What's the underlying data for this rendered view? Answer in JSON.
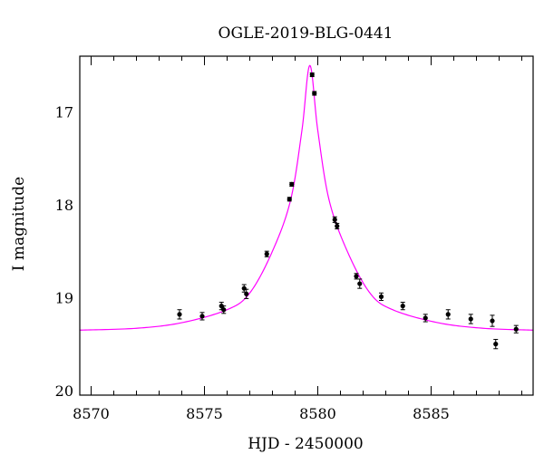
{
  "chart_data": {
    "type": "scatter",
    "title": "OGLE-2019-BLG-0441",
    "xlabel": "HJD - 2450000",
    "ylabel": "I magnitude",
    "xlim": [
      8569.5,
      8589.5
    ],
    "ylim": [
      20.05,
      16.4
    ],
    "y_inverted": true,
    "grid": false,
    "xticks": [
      8570,
      8575,
      8580,
      8585
    ],
    "xtick_labels": [
      "8570",
      "8575",
      "8580",
      "8585"
    ],
    "yticks": [
      17,
      18,
      19,
      20
    ],
    "ytick_labels": [
      "17",
      "18",
      "19",
      "20"
    ],
    "colors": {
      "model": "#ff00ff",
      "points": "#000000"
    },
    "model_curve": {
      "t0": 8579.65,
      "baseline_mag": 19.47,
      "points": [
        {
          "x": 8569.5,
          "y": 19.35
        },
        {
          "x": 8572.0,
          "y": 19.33
        },
        {
          "x": 8574.0,
          "y": 19.27
        },
        {
          "x": 8576.0,
          "y": 19.13
        },
        {
          "x": 8577.0,
          "y": 18.95
        },
        {
          "x": 8578.0,
          "y": 18.5
        },
        {
          "x": 8578.8,
          "y": 17.95
        },
        {
          "x": 8579.3,
          "y": 17.2
        },
        {
          "x": 8579.65,
          "y": 16.5
        },
        {
          "x": 8580.0,
          "y": 17.2
        },
        {
          "x": 8580.5,
          "y": 17.95
        },
        {
          "x": 8581.3,
          "y": 18.5
        },
        {
          "x": 8582.3,
          "y": 18.95
        },
        {
          "x": 8583.3,
          "y": 19.13
        },
        {
          "x": 8585.3,
          "y": 19.27
        },
        {
          "x": 8587.3,
          "y": 19.33
        },
        {
          "x": 8589.5,
          "y": 19.35
        }
      ]
    },
    "points": [
      {
        "x": 8573.9,
        "y": 19.18,
        "err": 0.05
      },
      {
        "x": 8574.9,
        "y": 19.2,
        "err": 0.04
      },
      {
        "x": 8575.75,
        "y": 19.09,
        "err": 0.04
      },
      {
        "x": 8575.85,
        "y": 19.13,
        "err": 0.04
      },
      {
        "x": 8576.75,
        "y": 18.9,
        "err": 0.04
      },
      {
        "x": 8576.85,
        "y": 18.96,
        "err": 0.05
      },
      {
        "x": 8577.75,
        "y": 18.53,
        "err": 0.03
      },
      {
        "x": 8578.75,
        "y": 17.94,
        "err": 0.02
      },
      {
        "x": 8578.85,
        "y": 17.78,
        "err": 0.02
      },
      {
        "x": 8579.75,
        "y": 16.6,
        "err": 0.02
      },
      {
        "x": 8579.85,
        "y": 16.8,
        "err": 0.02
      },
      {
        "x": 8580.75,
        "y": 18.16,
        "err": 0.03
      },
      {
        "x": 8580.85,
        "y": 18.23,
        "err": 0.03
      },
      {
        "x": 8581.7,
        "y": 18.77,
        "err": 0.03
      },
      {
        "x": 8581.85,
        "y": 18.85,
        "err": 0.05
      },
      {
        "x": 8582.8,
        "y": 18.99,
        "err": 0.04
      },
      {
        "x": 8583.75,
        "y": 19.09,
        "err": 0.04
      },
      {
        "x": 8584.75,
        "y": 19.22,
        "err": 0.04
      },
      {
        "x": 8585.75,
        "y": 19.18,
        "err": 0.05
      },
      {
        "x": 8586.75,
        "y": 19.23,
        "err": 0.05
      },
      {
        "x": 8587.7,
        "y": 19.25,
        "err": 0.06
      },
      {
        "x": 8587.85,
        "y": 19.5,
        "err": 0.05
      },
      {
        "x": 8588.75,
        "y": 19.34,
        "err": 0.04
      }
    ]
  }
}
